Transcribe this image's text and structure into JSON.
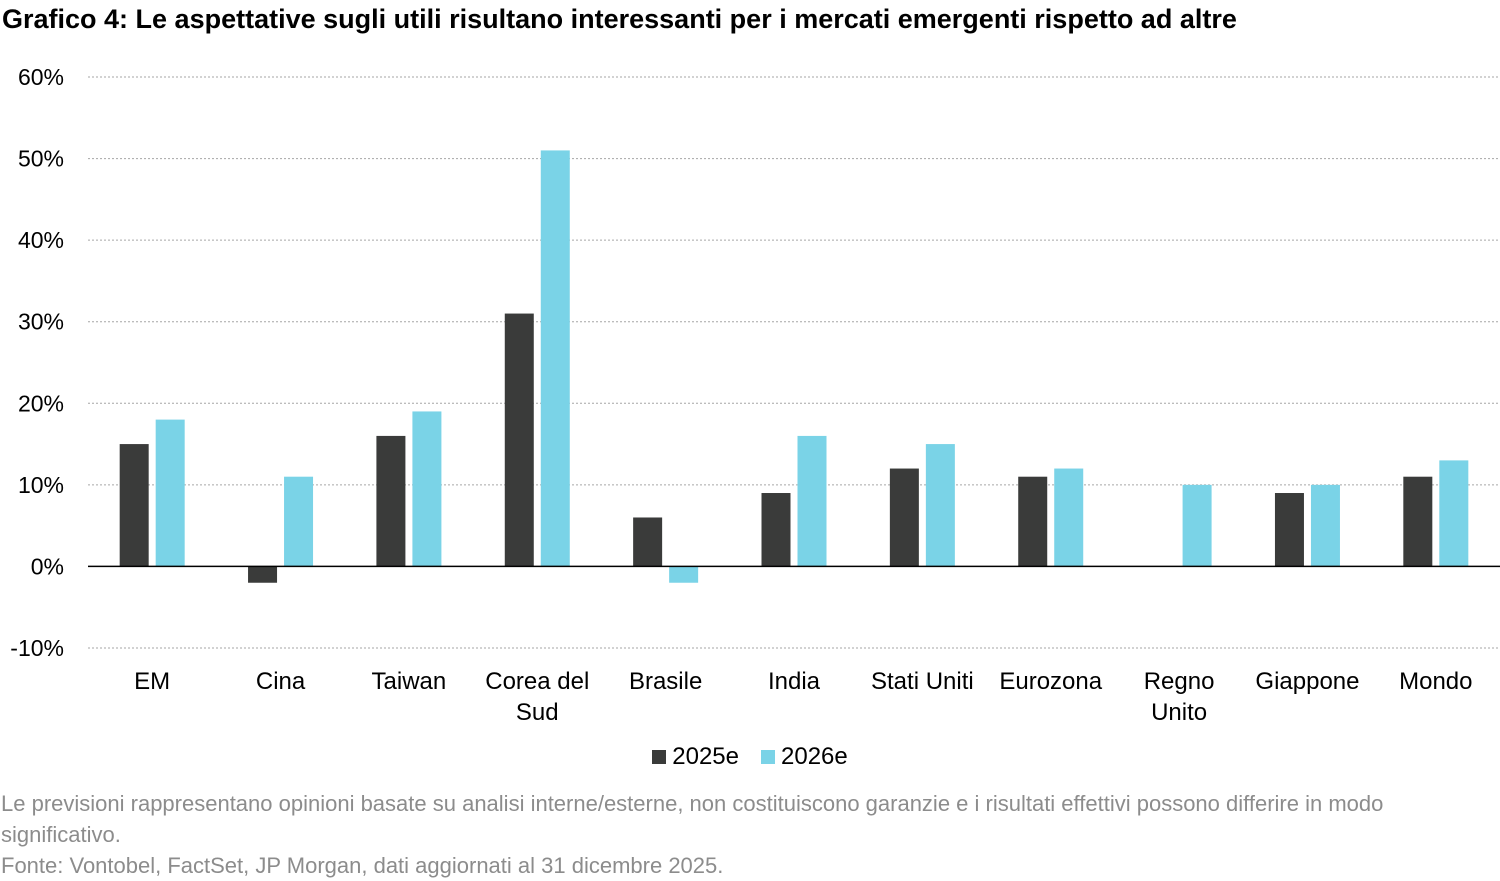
{
  "chart_data": {
    "type": "bar",
    "title": "Grafico 4: Le aspettative sugli utili risultano interessanti per i mercati emergenti rispetto ad altre",
    "categories": [
      [
        "EM"
      ],
      [
        "Cina"
      ],
      [
        "Taiwan"
      ],
      [
        "Corea del",
        "Sud"
      ],
      [
        "Brasile"
      ],
      [
        "India"
      ],
      [
        "Stati Uniti"
      ],
      [
        "Eurozona"
      ],
      [
        "Regno",
        "Unito"
      ],
      [
        "Giappone"
      ],
      [
        "Mondo"
      ]
    ],
    "series": [
      {
        "name": "2025e",
        "color": "#3a3b3a",
        "values": [
          15,
          -2,
          16,
          31,
          6,
          9,
          12,
          11,
          0,
          9,
          11
        ]
      },
      {
        "name": "2026e",
        "color": "#7ad3e7",
        "values": [
          18,
          11,
          19,
          51,
          -2,
          16,
          15,
          12,
          10,
          10,
          13
        ]
      }
    ],
    "ylim": [
      -10,
      60
    ],
    "yticks": [
      60,
      50,
      40,
      30,
      20,
      10,
      0,
      -10
    ],
    "ytick_labels": [
      "60%",
      "50%",
      "40%",
      "30%",
      "20%",
      "10%",
      "0%",
      "-10%"
    ],
    "xlabel": "",
    "ylabel": "",
    "grid": true,
    "legend_position": "bottom-center"
  },
  "footnotes": {
    "disclaimer": "Le previsioni rappresentano opinioni basate su analisi interne/esterne, non costituiscono garanzie e i risultati effettivi possono differire in modo significativo.",
    "source": "Fonte: Vontobel, FactSet, JP Morgan, dati aggiornati al 31 dicembre 2025."
  }
}
